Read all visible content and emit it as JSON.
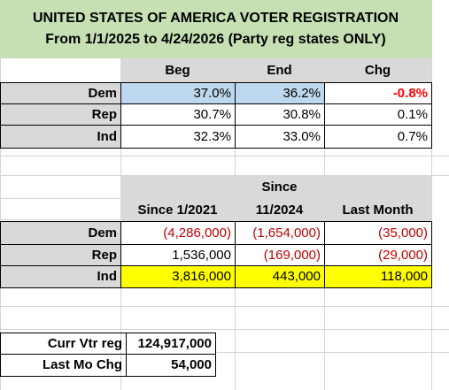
{
  "title": {
    "line1": "UNITED STATES OF AMERICA VOTER REGISTRATION",
    "line2": "From 1/1/2025 to 4/24/2026 (Party reg states ONLY)"
  },
  "table1": {
    "headers": [
      "Beg",
      "End",
      "Chg"
    ],
    "rows": [
      {
        "label": "Dem",
        "beg": "37.0%",
        "end": "36.2%",
        "chg": "-0.8%"
      },
      {
        "label": "Rep",
        "beg": "30.7%",
        "end": "30.8%",
        "chg": "0.1%"
      },
      {
        "label": "Ind",
        "beg": "32.3%",
        "end": "33.0%",
        "chg": "0.7%"
      }
    ]
  },
  "table2": {
    "header_since_top": "Since",
    "headers": [
      "Since 1/2021",
      "11/2024",
      "Last Month"
    ],
    "rows": [
      {
        "label": "Dem",
        "v1": "(4,286,000)",
        "v2": "(1,654,000)",
        "v3": "(35,000)"
      },
      {
        "label": "Rep",
        "v1": "1,536,000",
        "v2": "(169,000)",
        "v3": "(29,000)"
      },
      {
        "label": "Ind",
        "v1": "3,816,000",
        "v2": "443,000",
        "v3": "118,000"
      }
    ]
  },
  "summary": {
    "curr_label": "Curr Vtr reg",
    "curr_value": "124,917,000",
    "chg_label": "Last Mo Chg",
    "chg_value": "54,000"
  }
}
